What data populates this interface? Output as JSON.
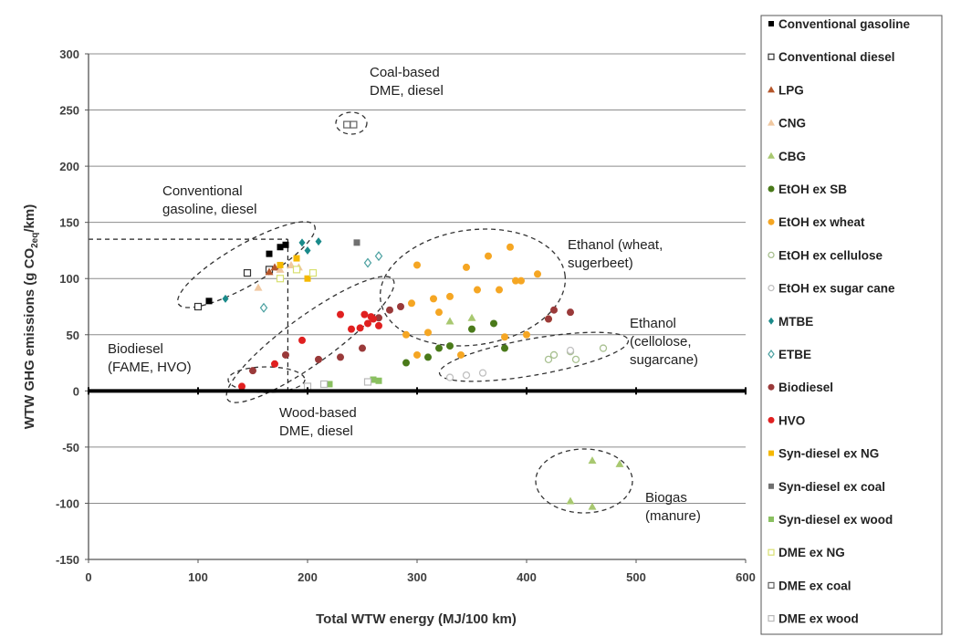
{
  "chart_data": {
    "type": "scatter",
    "xlabel": "Total WTW energy (MJ/100 km)",
    "ylabel": "WTW GHG emissions (g CO2eq/km)",
    "ylabel_parts": {
      "prefix": "WTW GHG emissions (g CO",
      "sub": "2eq",
      "suffix": "/km)"
    },
    "xlim": [
      0,
      600
    ],
    "ylim": [
      -150,
      300
    ],
    "x_ticks": [
      0,
      100,
      200,
      300,
      400,
      500,
      600
    ],
    "y_ticks": [
      -150,
      -100,
      -50,
      0,
      50,
      100,
      150,
      200,
      250,
      300
    ],
    "grid": "horizontal",
    "legend_position": "right",
    "annotations": [
      {
        "lines": [
          "Coal-based",
          "DME, diesel"
        ]
      },
      {
        "lines": [
          "Conventional",
          "gasoline, diesel"
        ]
      },
      {
        "lines": [
          "Ethanol  (wheat,",
          "sugerbeet)"
        ]
      },
      {
        "lines": [
          "Ethanol",
          "(cellolose,",
          "sugarcane)"
        ]
      },
      {
        "lines": [
          "Biodiesel",
          "(FAME, HVO)"
        ]
      },
      {
        "lines": [
          "Wood-based",
          "DME, diesel"
        ]
      },
      {
        "lines": [
          "Biogas",
          "(manure)"
        ]
      }
    ],
    "series": [
      {
        "name": "Conventional gasoline",
        "marker": "square",
        "color": "#000000",
        "points": [
          [
            110,
            80
          ],
          [
            165,
            122
          ],
          [
            175,
            128
          ],
          [
            180,
            130
          ]
        ]
      },
      {
        "name": "Conventional diesel",
        "marker": "square-open",
        "color": "#333333",
        "points": [
          [
            100,
            75
          ],
          [
            145,
            105
          ],
          [
            165,
            108
          ]
        ]
      },
      {
        "name": "LPG",
        "marker": "triangle",
        "color": "#b5562a",
        "points": [
          [
            165,
            106
          ],
          [
            170,
            110
          ]
        ]
      },
      {
        "name": "CNG",
        "marker": "triangle",
        "color": "#f0c8a0",
        "points": [
          [
            155,
            92
          ],
          [
            175,
            108
          ],
          [
            185,
            112
          ],
          [
            192,
            110
          ]
        ]
      },
      {
        "name": "CBG",
        "marker": "triangle",
        "color": "#a8c870",
        "points": [
          [
            330,
            62
          ],
          [
            350,
            65
          ],
          [
            440,
            -98
          ],
          [
            460,
            -103
          ],
          [
            460,
            -62
          ],
          [
            485,
            -65
          ]
        ]
      },
      {
        "name": "EtOH ex SB",
        "marker": "circle",
        "color": "#4a7a1a",
        "points": [
          [
            290,
            25
          ],
          [
            310,
            30
          ],
          [
            320,
            38
          ],
          [
            330,
            40
          ],
          [
            350,
            55
          ],
          [
            370,
            60
          ],
          [
            380,
            38
          ]
        ]
      },
      {
        "name": "EtOH ex wheat",
        "marker": "circle",
        "color": "#f5a623",
        "points": [
          [
            290,
            50
          ],
          [
            295,
            78
          ],
          [
            300,
            112
          ],
          [
            310,
            52
          ],
          [
            315,
            82
          ],
          [
            320,
            70
          ],
          [
            330,
            84
          ],
          [
            345,
            110
          ],
          [
            355,
            90
          ],
          [
            365,
            120
          ],
          [
            375,
            90
          ],
          [
            385,
            128
          ],
          [
            390,
            98
          ],
          [
            395,
            98
          ],
          [
            400,
            50
          ],
          [
            380,
            48
          ],
          [
            410,
            104
          ],
          [
            420,
            64
          ],
          [
            340,
            32
          ],
          [
            300,
            32
          ]
        ]
      },
      {
        "name": "EtOH ex cellulose",
        "marker": "circle-open",
        "color": "#a8c090",
        "points": [
          [
            420,
            28
          ],
          [
            425,
            32
          ],
          [
            440,
            35
          ],
          [
            445,
            28
          ],
          [
            470,
            38
          ]
        ]
      },
      {
        "name": "EtOH ex sugar cane",
        "marker": "circle-open",
        "color": "#c0c0c0",
        "points": [
          [
            330,
            12
          ],
          [
            345,
            14
          ],
          [
            360,
            16
          ],
          [
            440,
            36
          ]
        ]
      },
      {
        "name": "MTBE",
        "marker": "diamond",
        "color": "#1a8a8a",
        "points": [
          [
            125,
            82
          ],
          [
            195,
            132
          ],
          [
            200,
            125
          ],
          [
            210,
            133
          ]
        ]
      },
      {
        "name": "ETBE",
        "marker": "diamond-open",
        "color": "#4aa0a0",
        "points": [
          [
            160,
            74
          ],
          [
            255,
            114
          ],
          [
            265,
            120
          ]
        ]
      },
      {
        "name": "Biodiesel",
        "marker": "circle",
        "color": "#9a3a3a",
        "points": [
          [
            150,
            18
          ],
          [
            180,
            32
          ],
          [
            210,
            28
          ],
          [
            230,
            30
          ],
          [
            250,
            38
          ],
          [
            265,
            65
          ],
          [
            275,
            72
          ],
          [
            285,
            75
          ],
          [
            425,
            72
          ],
          [
            440,
            70
          ],
          [
            420,
            64
          ]
        ]
      },
      {
        "name": "HVO",
        "marker": "circle",
        "color": "#e02020",
        "points": [
          [
            140,
            4
          ],
          [
            170,
            24
          ],
          [
            195,
            45
          ],
          [
            230,
            68
          ],
          [
            240,
            55
          ],
          [
            248,
            56
          ],
          [
            252,
            68
          ],
          [
            255,
            60
          ],
          [
            258,
            66
          ],
          [
            260,
            64
          ],
          [
            265,
            58
          ]
        ]
      },
      {
        "name": "Syn-diesel ex NG",
        "marker": "square",
        "color": "#f5b800",
        "points": [
          [
            175,
            112
          ],
          [
            190,
            118
          ],
          [
            200,
            100
          ]
        ]
      },
      {
        "name": "Syn-diesel ex coal",
        "marker": "square",
        "color": "#707070",
        "points": [
          [
            245,
            132
          ]
        ]
      },
      {
        "name": "Syn-diesel ex wood",
        "marker": "square",
        "color": "#8ac060",
        "points": [
          [
            260,
            10
          ],
          [
            265,
            9
          ],
          [
            220,
            6
          ]
        ]
      },
      {
        "name": "DME ex NG",
        "marker": "square-open",
        "color": "#d8e070",
        "points": [
          [
            175,
            100
          ],
          [
            190,
            108
          ],
          [
            205,
            105
          ]
        ]
      },
      {
        "name": "DME ex coal",
        "marker": "square-open",
        "color": "#606060",
        "points": [
          [
            236,
            237
          ],
          [
            242,
            237
          ]
        ]
      },
      {
        "name": "DME ex wood",
        "marker": "square-open",
        "color": "#b8b8b8",
        "points": [
          [
            215,
            6
          ],
          [
            200,
            4
          ],
          [
            255,
            8
          ]
        ]
      }
    ]
  }
}
